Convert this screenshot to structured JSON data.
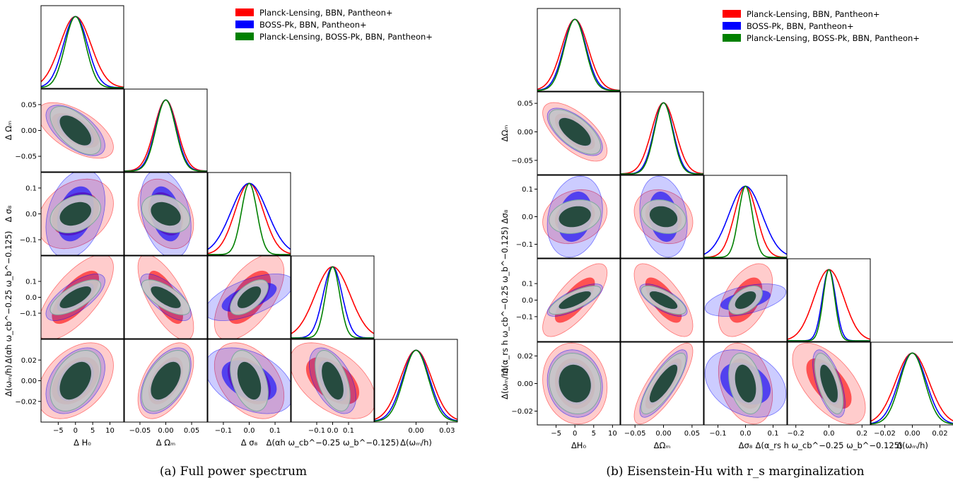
{
  "figure": {
    "colors": {
      "red": "#ff0000",
      "blue": "#0000ff",
      "green": "#008000",
      "inner": "#264b3f",
      "mid": "#c8c8c8"
    },
    "legend": [
      {
        "label": "Planck-Lensing, BBN, Pantheon+",
        "color": "#ff0000"
      },
      {
        "label": "BOSS-Pk, BBN, Pantheon+",
        "color": "#0000ff"
      },
      {
        "label": "Planck-Lensing, BOSS-Pk, BBN, Pantheon+",
        "color": "#008000"
      }
    ]
  },
  "chart_data": [
    {
      "type": "corner",
      "caption": "(a) Full power spectrum",
      "parameters": [
        {
          "xlabel": "Δ H₀",
          "ylabel": "",
          "ticks": [
            -5,
            0,
            5,
            10
          ],
          "ticklabels": [
            "−5",
            "0",
            "5",
            "10"
          ],
          "range": [
            -10,
            14
          ]
        },
        {
          "xlabel": "Δ Ωₘ",
          "ylabel": "Δ Ωₘ",
          "ticks": [
            -0.05,
            0,
            0.05
          ],
          "ticklabels": [
            "−0.05",
            "0.00",
            "0.05"
          ],
          "range": [
            -0.08,
            0.08
          ]
        },
        {
          "xlabel": "Δ σ₈",
          "ylabel": "Δ σ₈",
          "ticks": [
            -0.1,
            0,
            0.1
          ],
          "ticklabels": [
            "−0.1",
            "0.0",
            "0.1"
          ],
          "range": [
            -0.16,
            0.16
          ]
        },
        {
          "xlabel": "Δ(αh ω_cb^−0.25 ω_b^−0.125)",
          "ylabel": "Δ(αh ω_cb^−0.25 ω_b^−0.125)",
          "ticks": [
            -0.1,
            0,
            0.1
          ],
          "ticklabels": [
            "−0.1",
            "0.0",
            "0.1"
          ],
          "range": [
            -0.26,
            0.26
          ]
        },
        {
          "xlabel": "Δ(ωₘ/h)",
          "ylabel": "Δ(ωₘ/h)",
          "ticks": [
            -0.02,
            0,
            0.02
          ],
          "ticklabels": [
            "−0.02",
            "0.00",
            "0.02"
          ],
          "ytickonly": [
            -0.02,
            0,
            0.02
          ],
          "xticks": [
            0,
            0.03
          ],
          "xticklabels": [
            "0.00",
            "0.03"
          ],
          "range": [
            -0.04,
            0.04
          ]
        }
      ],
      "series": [
        {
          "name": "Planck-Lensing, BBN, Pantheon+",
          "color": "#ff0000",
          "sigma": [
            4.5,
            0.022,
            0.055,
            0.11,
            0.015
          ]
        },
        {
          "name": "BOSS-Pk, BBN, Pantheon+",
          "color": "#0000ff",
          "sigma": [
            3.5,
            0.02,
            0.07,
            0.06,
            0.013
          ]
        },
        {
          "name": "Planck-Lensing, BOSS-Pk, BBN, Pantheon+",
          "color": "#008000",
          "sigma": [
            3.0,
            0.019,
            0.03,
            0.045,
            0.012
          ]
        }
      ],
      "corr": [
        [
          1,
          -0.6,
          0.3,
          0.7,
          0.4
        ],
        [
          -0.6,
          1,
          -0.3,
          -0.7,
          0.5
        ],
        [
          0.3,
          -0.3,
          1,
          0.6,
          -0.4
        ],
        [
          0.7,
          -0.7,
          0.6,
          1,
          -0.5
        ],
        [
          0.4,
          0.5,
          -0.4,
          -0.5,
          1
        ]
      ]
    },
    {
      "type": "corner",
      "caption": "(b) Eisenstein-Hu with r_s marginalization",
      "parameters": [
        {
          "xlabel": "ΔH₀",
          "ylabel": "",
          "ticks": [
            -5,
            0,
            5,
            10
          ],
          "ticklabels": [
            "−5",
            "0",
            "5",
            "10"
          ],
          "range": [
            -10,
            12
          ]
        },
        {
          "xlabel": "ΔΩₘ",
          "ylabel": "ΔΩₘ",
          "ticks": [
            -0.05,
            0,
            0.05
          ],
          "ticklabels": [
            "−0.05",
            "0.00",
            "0.05"
          ],
          "range": [
            -0.075,
            0.07
          ]
        },
        {
          "xlabel": "Δσ₈",
          "ylabel": "Δσ₈",
          "ticks": [
            -0.1,
            0,
            0.1
          ],
          "ticklabels": [
            "−0.1",
            "0.0",
            "0.1"
          ],
          "range": [
            -0.15,
            0.15
          ]
        },
        {
          "xlabel": "Δ(α_rs h ω_cb^−0.25 ω_b^−0.125)",
          "ylabel": "Δ(α_rs h ω_cb^−0.25 ω_b^−0.125)",
          "ticks": [
            -0.1,
            0,
            0.1
          ],
          "ticklabels": [
            "−0.1",
            "0.0",
            "0.1"
          ],
          "xticks": [
            -0.2,
            0,
            0.2
          ],
          "xticklabels": [
            "−0.2",
            "0.0",
            "0.2"
          ],
          "range": [
            -0.25,
            0.25
          ]
        },
        {
          "xlabel": "Δ(ωₘ/h)",
          "ylabel": "Δ(ωₘ/h)",
          "ticks": [
            -0.02,
            0,
            0.02
          ],
          "ticklabels": [
            "−0.02",
            "0.00",
            "0.02"
          ],
          "range": [
            -0.03,
            0.03
          ]
        }
      ],
      "series": [
        {
          "name": "Planck-Lensing, BBN, Pantheon+",
          "color": "#ff0000",
          "sigma": [
            3.5,
            0.021,
            0.04,
            0.09,
            0.012
          ]
        },
        {
          "name": "BOSS-Pk, BBN, Pantheon+",
          "color": "#0000ff",
          "sigma": [
            3.0,
            0.017,
            0.06,
            0.04,
            0.01
          ]
        },
        {
          "name": "Planck-Lensing, BOSS-Pk, BBN, Pantheon+",
          "color": "#008000",
          "sigma": [
            2.8,
            0.016,
            0.025,
            0.035,
            0.009
          ]
        }
      ],
      "corr": [
        [
          1,
          -0.65,
          0.2,
          0.75,
          -0.1
        ],
        [
          -0.65,
          1,
          -0.2,
          -0.7,
          0.8
        ],
        [
          0.2,
          -0.2,
          1,
          0.5,
          -0.3
        ],
        [
          0.75,
          -0.7,
          0.5,
          1,
          -0.6
        ],
        [
          -0.1,
          0.8,
          -0.3,
          -0.6,
          1
        ]
      ]
    }
  ]
}
